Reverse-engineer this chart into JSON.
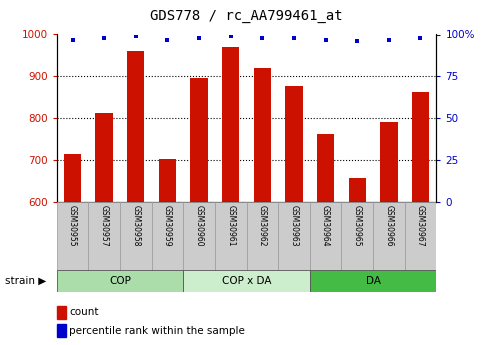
{
  "title": "GDS778 / rc_AA799461_at",
  "categories": [
    "GSM30955",
    "GSM30957",
    "GSM30958",
    "GSM30959",
    "GSM30960",
    "GSM30961",
    "GSM30962",
    "GSM30963",
    "GSM30964",
    "GSM30965",
    "GSM30966",
    "GSM30967"
  ],
  "bar_values": [
    715,
    812,
    960,
    703,
    895,
    970,
    920,
    878,
    762,
    657,
    790,
    862
  ],
  "percentile_values": [
    97,
    98,
    99,
    97,
    98,
    99,
    98,
    98,
    97,
    96,
    97,
    98
  ],
  "ylim_left": [
    600,
    1000
  ],
  "ylim_right": [
    0,
    100
  ],
  "yticks_left": [
    600,
    700,
    800,
    900,
    1000
  ],
  "yticks_right": [
    0,
    25,
    50,
    75,
    100
  ],
  "ytick_labels_right": [
    "0",
    "25",
    "50",
    "75",
    "100%"
  ],
  "bar_color": "#cc1100",
  "percentile_color": "#0000cc",
  "background_color": "#ffffff",
  "tick_label_color_left": "#cc1100",
  "tick_label_color_right": "#0000cc",
  "legend_count_label": "count",
  "legend_percentile_label": "percentile rank within the sample",
  "sample_bg_color": "#cccccc",
  "group_info": [
    {
      "label": "COP",
      "start": 0,
      "end": 3,
      "color": "#aaddaa"
    },
    {
      "label": "COP x DA",
      "start": 4,
      "end": 7,
      "color": "#cceecc"
    },
    {
      "label": "DA",
      "start": 8,
      "end": 11,
      "color": "#44bb44"
    }
  ],
  "grid_lines": [
    700,
    800,
    900
  ],
  "hgrid_color": "#000000",
  "spine_color": "#000000"
}
